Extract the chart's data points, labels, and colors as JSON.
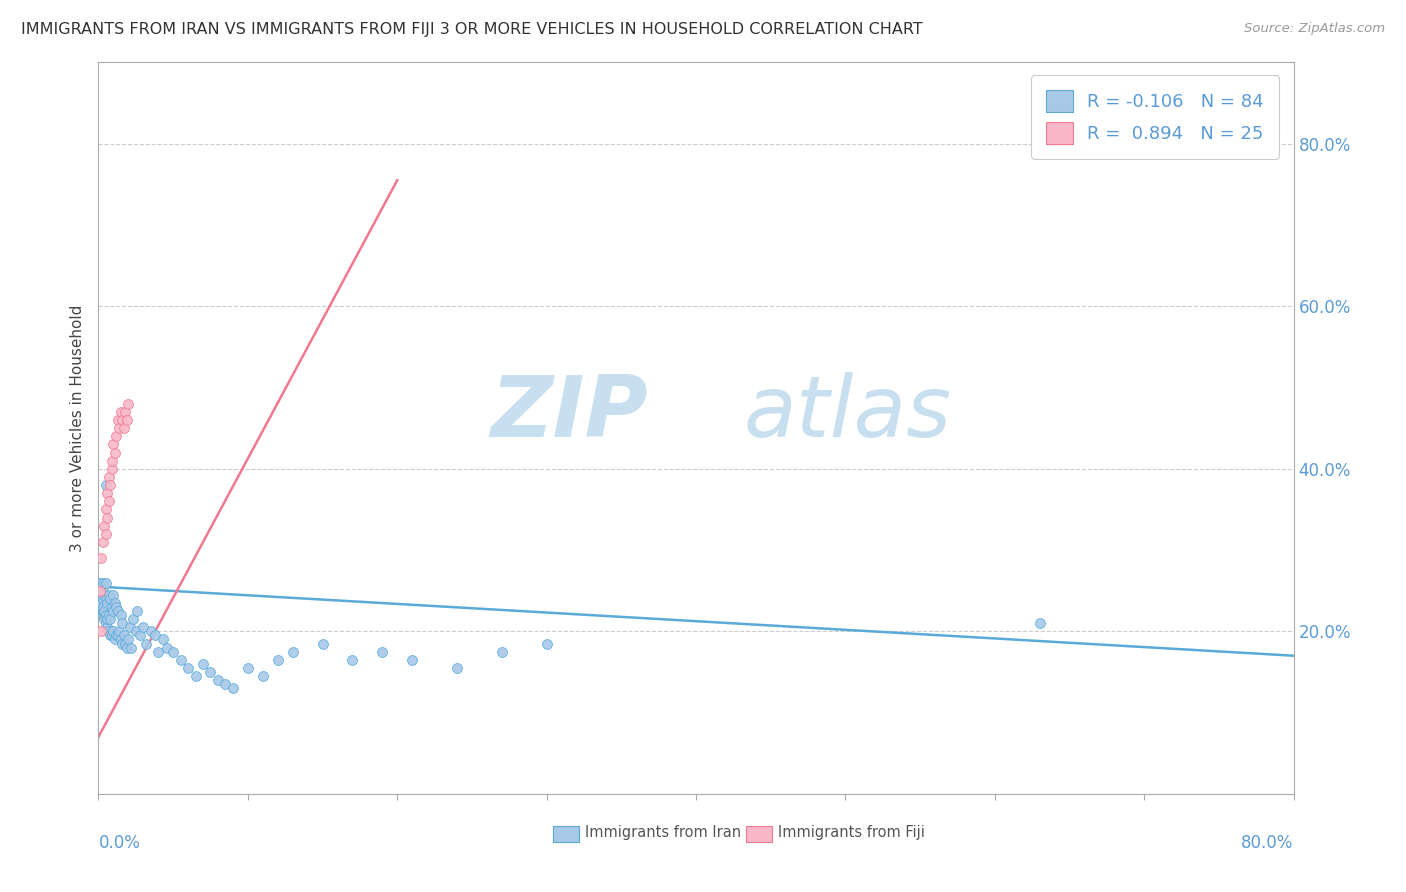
{
  "title": "IMMIGRANTS FROM IRAN VS IMMIGRANTS FROM FIJI 3 OR MORE VEHICLES IN HOUSEHOLD CORRELATION CHART",
  "source": "Source: ZipAtlas.com",
  "ylabel": "3 or more Vehicles in Household",
  "legend_entries": [
    {
      "label": "Immigrants from Iran",
      "R": -0.106,
      "N": 84
    },
    {
      "label": "Immigrants from Fiji",
      "R": 0.894,
      "N": 25
    }
  ],
  "iran_dot_color": "#a8c8e8",
  "iran_line_color": "#5aaad8",
  "fiji_dot_color": "#f8b8c8",
  "fiji_line_color": "#f07890",
  "background_color": "#ffffff",
  "watermark_zip": "ZIP",
  "watermark_atlas": "atlas",
  "watermark_color": "#c8dff0",
  "iran_line_x": [
    0.0,
    0.8
  ],
  "iran_line_y": [
    0.255,
    0.17
  ],
  "fiji_line_x": [
    0.0,
    0.2
  ],
  "fiji_line_y": [
    0.07,
    0.755
  ],
  "iran_scatter_x": [
    0.001,
    0.001,
    0.001,
    0.002,
    0.002,
    0.002,
    0.002,
    0.003,
    0.003,
    0.003,
    0.003,
    0.003,
    0.003,
    0.004,
    0.004,
    0.004,
    0.005,
    0.005,
    0.005,
    0.005,
    0.006,
    0.006,
    0.006,
    0.007,
    0.007,
    0.007,
    0.008,
    0.008,
    0.008,
    0.009,
    0.009,
    0.01,
    0.01,
    0.01,
    0.011,
    0.011,
    0.012,
    0.012,
    0.013,
    0.013,
    0.014,
    0.015,
    0.015,
    0.016,
    0.016,
    0.017,
    0.018,
    0.019,
    0.02,
    0.021,
    0.022,
    0.023,
    0.025,
    0.026,
    0.028,
    0.03,
    0.032,
    0.035,
    0.038,
    0.04,
    0.043,
    0.046,
    0.05,
    0.055,
    0.06,
    0.065,
    0.07,
    0.075,
    0.08,
    0.085,
    0.09,
    0.1,
    0.11,
    0.12,
    0.13,
    0.15,
    0.17,
    0.19,
    0.21,
    0.24,
    0.27,
    0.3,
    0.63,
    0.005
  ],
  "iran_scatter_y": [
    0.25,
    0.24,
    0.26,
    0.23,
    0.235,
    0.245,
    0.255,
    0.22,
    0.225,
    0.23,
    0.24,
    0.25,
    0.26,
    0.215,
    0.225,
    0.245,
    0.21,
    0.22,
    0.24,
    0.26,
    0.205,
    0.215,
    0.235,
    0.2,
    0.22,
    0.245,
    0.195,
    0.215,
    0.24,
    0.195,
    0.23,
    0.2,
    0.225,
    0.245,
    0.19,
    0.235,
    0.195,
    0.23,
    0.195,
    0.225,
    0.2,
    0.19,
    0.22,
    0.185,
    0.21,
    0.195,
    0.185,
    0.18,
    0.19,
    0.205,
    0.18,
    0.215,
    0.2,
    0.225,
    0.195,
    0.205,
    0.185,
    0.2,
    0.195,
    0.175,
    0.19,
    0.18,
    0.175,
    0.165,
    0.155,
    0.145,
    0.16,
    0.15,
    0.14,
    0.135,
    0.13,
    0.155,
    0.145,
    0.165,
    0.175,
    0.185,
    0.165,
    0.175,
    0.165,
    0.155,
    0.175,
    0.185,
    0.21,
    0.38
  ],
  "fiji_scatter_x": [
    0.001,
    0.002,
    0.003,
    0.004,
    0.005,
    0.005,
    0.006,
    0.006,
    0.007,
    0.007,
    0.008,
    0.009,
    0.009,
    0.01,
    0.011,
    0.012,
    0.013,
    0.014,
    0.015,
    0.016,
    0.017,
    0.018,
    0.019,
    0.02,
    0.002
  ],
  "fiji_scatter_y": [
    0.25,
    0.29,
    0.31,
    0.33,
    0.35,
    0.32,
    0.34,
    0.37,
    0.36,
    0.39,
    0.38,
    0.4,
    0.41,
    0.43,
    0.42,
    0.44,
    0.46,
    0.45,
    0.47,
    0.46,
    0.45,
    0.47,
    0.46,
    0.48,
    0.2
  ],
  "xlim": [
    0.0,
    0.8
  ],
  "ylim": [
    0.0,
    0.9
  ],
  "yticks": [
    0.2,
    0.4,
    0.6,
    0.8
  ]
}
